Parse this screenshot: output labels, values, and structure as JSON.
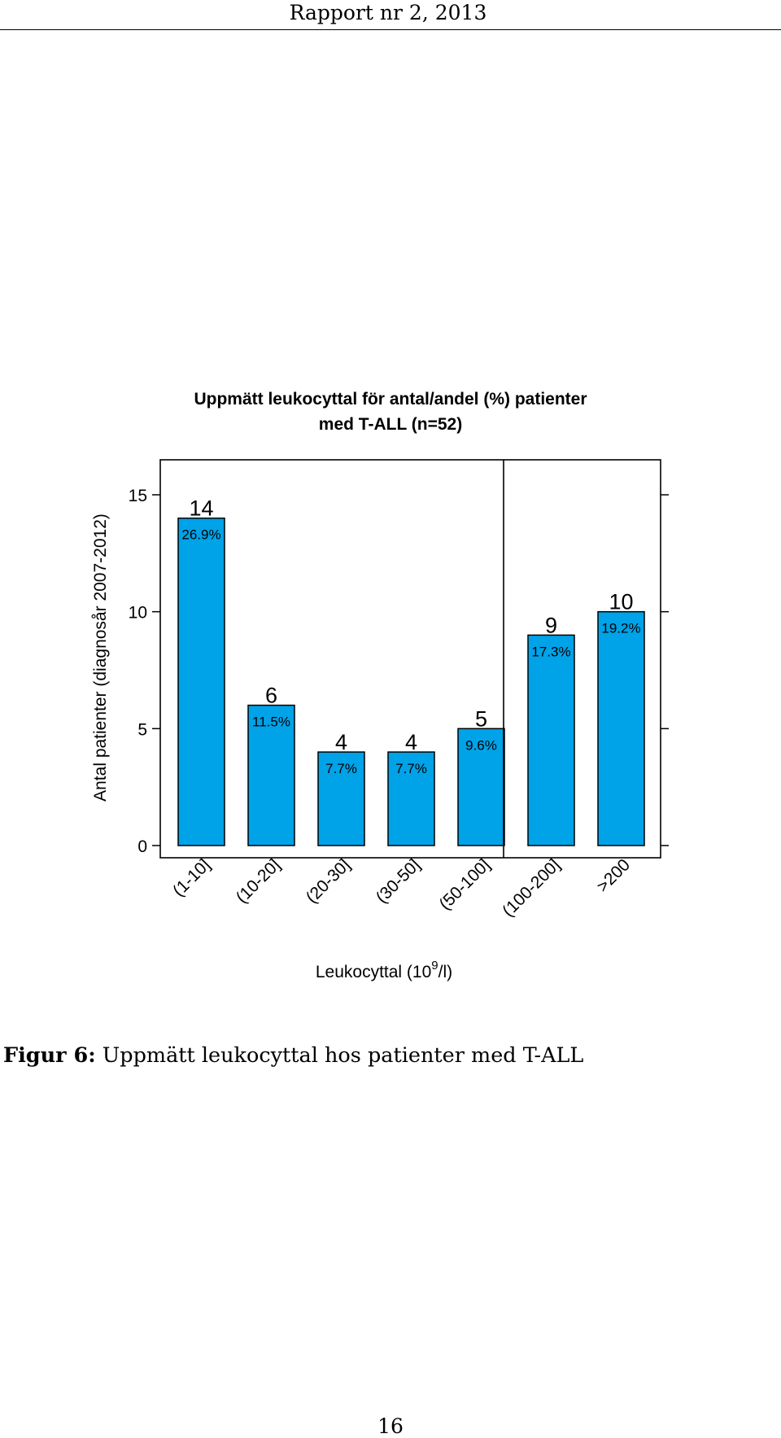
{
  "header": {
    "running_title": "Rapport nr 2, 2013"
  },
  "chart_data": {
    "type": "bar",
    "title_line1": "Uppmätt leukocyttal för antal/andel (%) patienter",
    "title_line2": "med T-ALL (n=52)",
    "xlabel_main": "Leukocyttal (10",
    "xlabel_sup": "9",
    "xlabel_end": "/l)",
    "ylabel": "Antal patienter (diagnosår 2007-2012)",
    "categories": [
      "(1-10]",
      "(10-20]",
      "(20-30]",
      "(30-50]",
      "(50-100]",
      "(100-200]",
      ">200"
    ],
    "values": [
      14,
      6,
      4,
      4,
      5,
      9,
      10
    ],
    "percent_labels": [
      "26.9%",
      "11.5%",
      "7.7%",
      "7.7%",
      "9.6%",
      "17.3%",
      "19.2%"
    ],
    "y_ticks": [
      "0",
      "5",
      "10",
      "15"
    ],
    "ylim": [
      0,
      15
    ],
    "bar_color": "#00a2e8",
    "grid": false
  },
  "caption": {
    "label": "Figur 6:",
    "text": "Uppmätt leukocyttal hos patienter med T-ALL"
  },
  "footer": {
    "page_number": "16"
  }
}
